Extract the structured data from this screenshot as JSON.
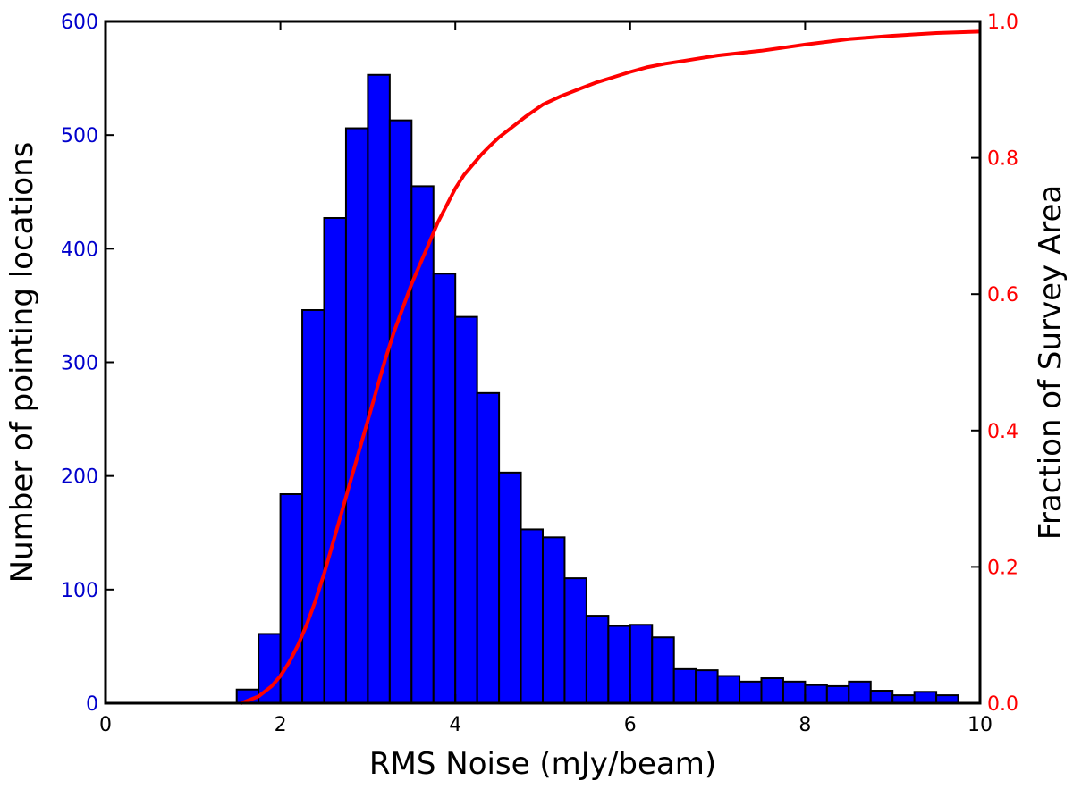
{
  "chart_data": {
    "type": "bar",
    "title": "",
    "xlabel": "RMS Noise (mJy/beam)",
    "ylabel": "Number of pointing locations",
    "y2label": "Fraction of Survey Area",
    "xlim": [
      0,
      10
    ],
    "ylim": [
      0,
      600
    ],
    "y2lim": [
      0.0,
      1.0
    ],
    "x_ticks": [
      "0",
      "2",
      "4",
      "6",
      "8",
      "10"
    ],
    "y_ticks": [
      "0",
      "100",
      "200",
      "300",
      "400",
      "500",
      "600"
    ],
    "y2_ticks": [
      "0.0",
      "0.2",
      "0.4",
      "0.6",
      "0.8",
      "1.0"
    ],
    "grid": false,
    "legend": "none",
    "colors": {
      "bars": "#0000ff",
      "bar_edge": "#000000",
      "cumulative_line": "#ff0000",
      "left_axis_ticks": "#0000cc",
      "right_axis_ticks": "#ff0000"
    },
    "series": [
      {
        "type": "bar",
        "axis": "left",
        "bin_width": 0.25,
        "bin_starts": [
          1.5,
          1.75,
          2.0,
          2.25,
          2.5,
          2.75,
          3.0,
          3.25,
          3.5,
          3.75,
          4.0,
          4.25,
          4.5,
          4.75,
          5.0,
          5.25,
          5.5,
          5.75,
          6.0,
          6.25,
          6.5,
          6.75,
          7.0,
          7.25,
          7.5,
          7.75,
          8.0,
          8.25,
          8.5,
          8.75,
          9.0,
          9.25,
          9.5
        ],
        "values": [
          12,
          61,
          184,
          346,
          427,
          506,
          553,
          513,
          455,
          378,
          340,
          273,
          203,
          153,
          146,
          110,
          77,
          68,
          69,
          58,
          30,
          29,
          24,
          19,
          22,
          19,
          16,
          15,
          19,
          11,
          7,
          10,
          7
        ]
      },
      {
        "type": "line",
        "axis": "right",
        "x": [
          1.55,
          1.75,
          1.9,
          2.0,
          2.1,
          2.2,
          2.3,
          2.4,
          2.5,
          2.6,
          2.7,
          2.8,
          2.9,
          3.0,
          3.1,
          3.2,
          3.3,
          3.4,
          3.5,
          3.6,
          3.7,
          3.8,
          3.9,
          4.0,
          4.1,
          4.2,
          4.3,
          4.4,
          4.5,
          4.6,
          4.8,
          5.0,
          5.2,
          5.4,
          5.6,
          5.8,
          6.0,
          6.2,
          6.4,
          6.6,
          6.8,
          7.0,
          7.5,
          8.0,
          8.5,
          9.0,
          9.5,
          10.0
        ],
        "values": [
          0.0,
          0.01,
          0.025,
          0.04,
          0.06,
          0.085,
          0.115,
          0.15,
          0.19,
          0.235,
          0.28,
          0.325,
          0.37,
          0.415,
          0.46,
          0.505,
          0.545,
          0.58,
          0.615,
          0.645,
          0.675,
          0.705,
          0.73,
          0.755,
          0.775,
          0.79,
          0.805,
          0.818,
          0.83,
          0.84,
          0.86,
          0.878,
          0.89,
          0.9,
          0.91,
          0.918,
          0.926,
          0.933,
          0.938,
          0.942,
          0.946,
          0.95,
          0.957,
          0.966,
          0.974,
          0.979,
          0.983,
          0.985
        ]
      }
    ]
  }
}
